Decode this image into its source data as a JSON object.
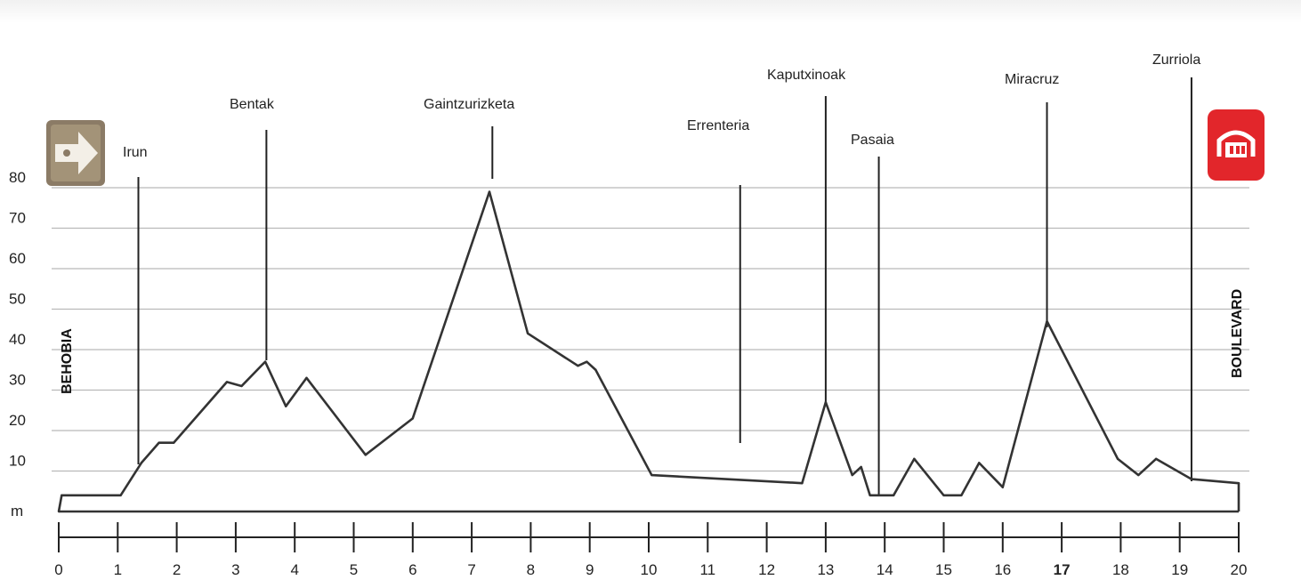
{
  "chart_data": {
    "type": "line",
    "xlim": [
      0,
      20
    ],
    "ylim": [
      0,
      80
    ],
    "x_ticks": [
      0,
      1,
      2,
      3,
      4,
      5,
      6,
      7,
      8,
      9,
      10,
      11,
      12,
      13,
      14,
      15,
      16,
      17,
      18,
      19,
      20
    ],
    "x_tick_labels": [
      "0",
      "1",
      "2",
      "3",
      "4",
      "5",
      "6",
      "7",
      "8",
      "9",
      "10",
      "11",
      "12",
      "13",
      "14",
      "15",
      "16",
      "17",
      "18",
      "19",
      "20"
    ],
    "x_tick_emphasis": "17",
    "y_ticks": [
      10,
      20,
      30,
      40,
      50,
      60,
      70,
      80
    ],
    "y_tick_labels": [
      "10",
      "20",
      "30",
      "40",
      "50",
      "60",
      "70",
      "80"
    ],
    "ylabel": "m",
    "grid": true,
    "series": [
      {
        "x": [
          0,
          0.05,
          1.05,
          1.4,
          1.7,
          1.95,
          2.85,
          3.1,
          3.5,
          3.85,
          4.2,
          5.2,
          6.0,
          7.3,
          7.95,
          8.8,
          8.95,
          9.1,
          10.05,
          12.6,
          13.0,
          13.45,
          13.6,
          13.75,
          14.15,
          14.5,
          15.0,
          15.3,
          15.6,
          16.0,
          16.75,
          17.95,
          18.3,
          18.6,
          19.2,
          20.0
        ],
        "y": [
          0,
          4,
          4,
          12,
          17,
          17,
          32,
          31,
          37,
          26,
          33,
          14,
          23,
          79,
          44,
          36,
          37,
          35,
          9,
          7,
          27,
          9,
          11,
          4,
          4,
          13,
          4,
          4,
          12,
          6,
          47,
          13,
          9,
          13,
          8,
          7
        ]
      }
    ],
    "annotations": [
      {
        "label": "Irun",
        "x": 1.35
      },
      {
        "label": "Bentak",
        "x": 3.52
      },
      {
        "label": "Gaintzurizketa",
        "x": 7.35
      },
      {
        "label": "Errenteria",
        "x": 11.55
      },
      {
        "label": "Kaputxinoak",
        "x": 13.0
      },
      {
        "label": "Pasaia",
        "x": 13.9
      },
      {
        "label": "Miracruz",
        "x": 16.75
      },
      {
        "label": "Zurriola",
        "x": 19.2
      }
    ],
    "start_label": "BEHOBIA",
    "finish_label": "BOULEVARD"
  },
  "icons": {
    "start": "arrow-sign-icon",
    "finish": "stadium-icon",
    "start_color": "#8b7b66",
    "finish_color": "#e2262b"
  },
  "colors": {
    "line": "#333333",
    "grid": "#b9b9b9",
    "axis": "#222222"
  }
}
